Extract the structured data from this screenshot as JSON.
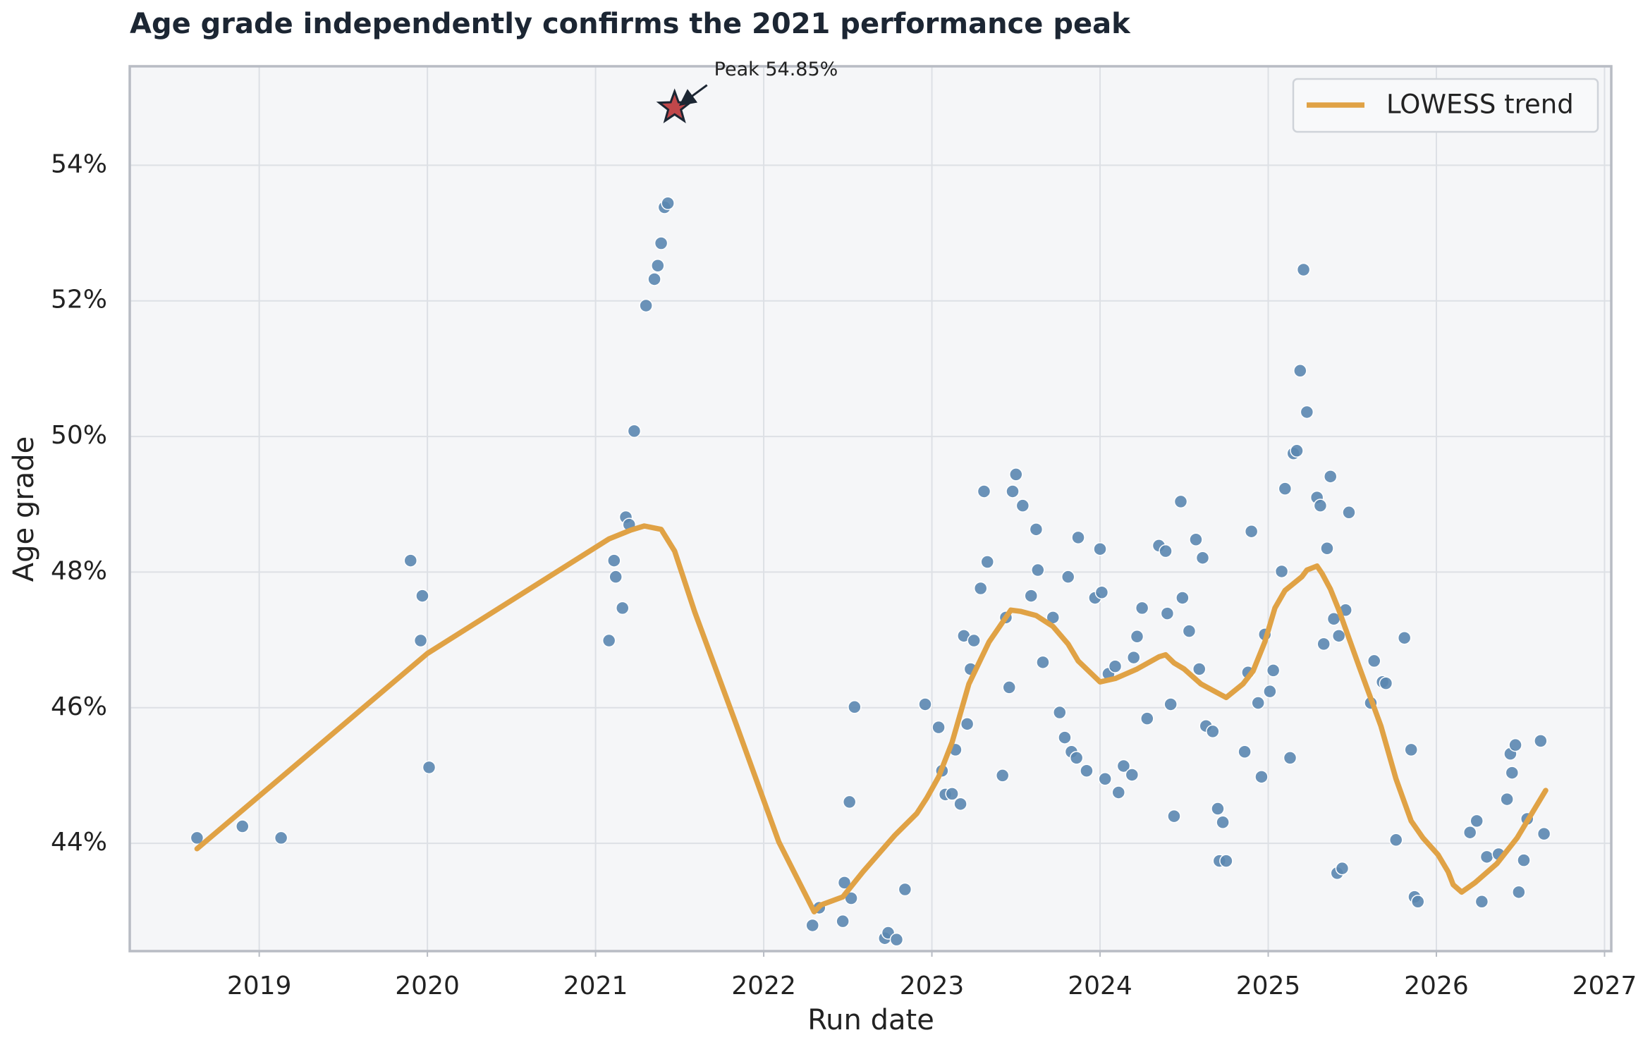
{
  "chart_data": {
    "type": "scatter",
    "title": "Age grade independently confirms the 2021 performance peak",
    "x_label": "Run date",
    "y_label": "Age grade",
    "xlim": [
      2018.23,
      2027.04
    ],
    "ylim": [
      42.41,
      55.46
    ],
    "xticks": [
      2019,
      2020,
      2021,
      2022,
      2023,
      2024,
      2025,
      2026,
      2027
    ],
    "yticks": [
      {
        "value": 44,
        "label": "44%"
      },
      {
        "value": 46,
        "label": "46%"
      },
      {
        "value": 48,
        "label": "48%"
      },
      {
        "value": 50,
        "label": "50%"
      },
      {
        "value": 52,
        "label": "52%"
      },
      {
        "value": 54,
        "label": "54%"
      }
    ],
    "grid": true,
    "legend": "upper right",
    "scatter": {
      "color": "#5b87b0",
      "x": [
        2018.63,
        2018.9,
        2019.13,
        2019.9,
        2019.97,
        2019.96,
        2020.01,
        2021.08,
        2021.11,
        2021.12,
        2021.16,
        2021.18,
        2021.2,
        2021.23,
        2021.3,
        2021.35,
        2021.37,
        2021.39,
        2021.41,
        2021.43,
        2022.29,
        2022.33,
        2022.47,
        2022.48,
        2022.51,
        2022.52,
        2022.54,
        2022.72,
        2022.74,
        2022.79,
        2022.84,
        2022.96,
        2023.04,
        2023.06,
        2023.08,
        2023.12,
        2023.14,
        2023.17,
        2023.19,
        2023.21,
        2023.23,
        2023.25,
        2023.29,
        2023.31,
        2023.33,
        2023.42,
        2023.44,
        2023.46,
        2023.48,
        2023.5,
        2023.54,
        2023.59,
        2023.62,
        2023.63,
        2023.66,
        2023.72,
        2023.76,
        2023.79,
        2023.81,
        2023.83,
        2023.86,
        2023.87,
        2023.92,
        2023.97,
        2024.0,
        2024.01,
        2024.03,
        2024.05,
        2024.09,
        2024.11,
        2024.14,
        2024.19,
        2024.2,
        2024.22,
        2024.25,
        2024.28,
        2024.35,
        2024.39,
        2024.4,
        2024.42,
        2024.44,
        2024.48,
        2024.49,
        2024.53,
        2024.57,
        2024.59,
        2024.61,
        2024.63,
        2024.67,
        2024.7,
        2024.71,
        2024.73,
        2024.75,
        2024.86,
        2024.88,
        2024.9,
        2024.94,
        2024.96,
        2024.98,
        2025.01,
        2025.03,
        2025.08,
        2025.1,
        2025.13,
        2025.15,
        2025.17,
        2025.19,
        2025.21,
        2025.23,
        2025.29,
        2025.31,
        2025.33,
        2025.35,
        2025.37,
        2025.39,
        2025.41,
        2025.42,
        2025.44,
        2025.46,
        2025.48,
        2025.61,
        2025.63,
        2025.68,
        2025.7,
        2025.76,
        2025.81,
        2025.85,
        2025.87,
        2025.89,
        2026.2,
        2026.24,
        2026.27,
        2026.3,
        2026.37,
        2026.42,
        2026.44,
        2026.45,
        2026.47,
        2026.49,
        2026.52,
        2026.54,
        2026.62,
        2026.64
      ],
      "values": [
        44.08,
        44.25,
        44.08,
        48.17,
        47.65,
        46.99,
        45.12,
        46.99,
        48.17,
        47.93,
        47.47,
        48.81,
        48.7,
        50.08,
        51.93,
        52.32,
        52.52,
        52.85,
        53.38,
        53.44,
        42.79,
        43.05,
        42.85,
        43.42,
        44.61,
        43.19,
        46.01,
        42.6,
        42.68,
        42.58,
        43.32,
        46.05,
        45.71,
        45.07,
        44.72,
        44.73,
        45.38,
        44.58,
        47.06,
        45.76,
        46.57,
        46.99,
        47.76,
        49.19,
        48.15,
        45.0,
        47.33,
        46.3,
        49.19,
        49.44,
        48.98,
        47.65,
        48.63,
        48.03,
        46.67,
        47.33,
        45.93,
        45.56,
        47.93,
        45.35,
        45.26,
        48.51,
        45.07,
        47.62,
        48.34,
        47.7,
        44.95,
        46.5,
        46.61,
        44.75,
        45.14,
        45.01,
        46.74,
        47.05,
        47.47,
        45.84,
        48.39,
        48.31,
        47.39,
        46.05,
        44.4,
        49.04,
        47.62,
        47.13,
        48.48,
        46.57,
        48.21,
        45.73,
        45.65,
        44.51,
        43.74,
        44.31,
        43.74,
        45.35,
        46.52,
        48.6,
        46.07,
        44.98,
        47.08,
        46.24,
        46.55,
        48.01,
        49.23,
        45.26,
        49.75,
        49.79,
        50.97,
        52.46,
        50.36,
        49.1,
        48.98,
        46.94,
        48.35,
        49.41,
        47.31,
        43.56,
        47.06,
        43.63,
        47.44,
        48.88,
        46.07,
        46.69,
        46.38,
        46.36,
        44.05,
        47.03,
        45.38,
        43.21,
        43.14,
        44.16,
        44.33,
        43.14,
        43.8,
        43.84,
        44.65,
        45.32,
        45.04,
        45.45,
        43.28,
        43.75,
        44.36,
        45.51,
        44.14
      ]
    },
    "trend": {
      "name": "LOWESS trend",
      "color": "#e0a245",
      "x": [
        2018.63,
        2020.0,
        2021.08,
        2021.21,
        2021.29,
        2021.39,
        2021.47,
        2021.59,
        2021.84,
        2022.09,
        2022.3,
        2022.34,
        2022.47,
        2022.59,
        2022.78,
        2022.91,
        2022.97,
        2023.04,
        2023.12,
        2023.22,
        2023.34,
        2023.47,
        2023.53,
        2023.62,
        2023.72,
        2023.81,
        2023.87,
        2024.0,
        2024.09,
        2024.22,
        2024.35,
        2024.39,
        2024.44,
        2024.5,
        2024.6,
        2024.72,
        2024.75,
        2024.85,
        2024.91,
        2024.98,
        2025.04,
        2025.1,
        2025.2,
        2025.23,
        2025.29,
        2025.32,
        2025.37,
        2025.42,
        2025.54,
        2025.67,
        2025.76,
        2025.85,
        2025.92,
        2026.01,
        2026.07,
        2026.1,
        2026.15,
        2026.23,
        2026.36,
        2026.48,
        2026.65
      ],
      "values": [
        43.92,
        46.8,
        48.49,
        48.62,
        48.68,
        48.63,
        48.31,
        47.41,
        45.73,
        44.02,
        42.99,
        43.09,
        43.21,
        43.58,
        44.12,
        44.44,
        44.67,
        44.98,
        45.49,
        46.35,
        46.97,
        47.44,
        47.42,
        47.36,
        47.2,
        46.94,
        46.69,
        46.38,
        46.43,
        46.57,
        46.75,
        46.78,
        46.66,
        46.57,
        46.35,
        46.19,
        46.15,
        46.35,
        46.54,
        46.97,
        47.47,
        47.73,
        47.93,
        48.03,
        48.09,
        47.98,
        47.75,
        47.44,
        46.61,
        45.73,
        44.95,
        44.33,
        44.08,
        43.83,
        43.58,
        43.39,
        43.28,
        43.42,
        43.7,
        44.08,
        44.78
      ]
    },
    "peak": {
      "x": 2021.47,
      "y": 54.85,
      "label": "Peak 54.85%",
      "color": "#c0474a"
    }
  }
}
